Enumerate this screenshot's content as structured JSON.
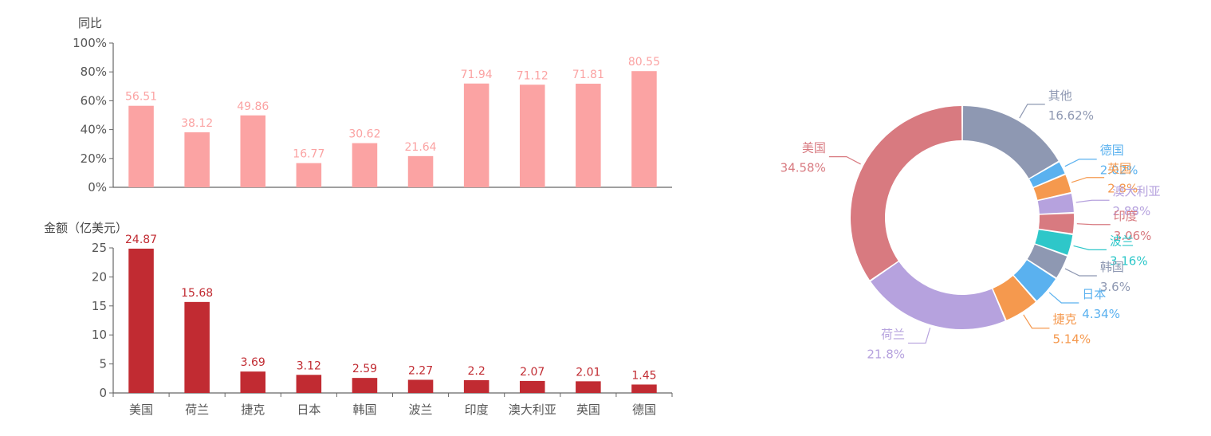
{
  "colors": {
    "yoy_bar": "#fba3a3",
    "amount_bar": "#c12b32",
    "axis": "#666666",
    "text": "#555555"
  },
  "chart_data": [
    {
      "type": "bar",
      "categories": [
        "美国",
        "荷兰",
        "捷克",
        "日本",
        "韩国",
        "波兰",
        "印度",
        "澳大利亚",
        "英国",
        "德国"
      ],
      "values": [
        56.51,
        38.12,
        49.86,
        16.77,
        30.62,
        21.64,
        71.94,
        71.12,
        71.81,
        80.55
      ],
      "ylabel": "同比",
      "ylim": [
        0,
        100
      ],
      "yticks": [
        "0%",
        "20%",
        "40%",
        "60%",
        "80%",
        "100%"
      ],
      "color": "#fba3a3"
    },
    {
      "type": "bar",
      "categories": [
        "美国",
        "荷兰",
        "捷克",
        "日本",
        "韩国",
        "波兰",
        "印度",
        "澳大利亚",
        "英国",
        "德国"
      ],
      "values": [
        24.87,
        15.68,
        3.69,
        3.12,
        2.59,
        2.27,
        2.2,
        2.07,
        2.01,
        1.45
      ],
      "ylabel": "金额（亿美元）",
      "ylim": [
        0,
        25
      ],
      "yticks": [
        "0",
        "5",
        "10",
        "15",
        "20",
        "25"
      ],
      "color": "#c12b32"
    },
    {
      "type": "pie",
      "donut": true,
      "slices": [
        {
          "name": "其他",
          "value": 16.62,
          "label": "16.62%",
          "color": "#8e98b2"
        },
        {
          "name": "德国",
          "value": 2.02,
          "label": "2.02%",
          "color": "#5ab1ef"
        },
        {
          "name": "英国",
          "value": 2.8,
          "label": "2.8%",
          "color": "#f5994e"
        },
        {
          "name": "澳大利亚",
          "value": 2.88,
          "label": "2.88%",
          "color": "#b6a2de"
        },
        {
          "name": "印度",
          "value": 3.06,
          "label": "3.06%",
          "color": "#d87a80"
        },
        {
          "name": "波兰",
          "value": 3.16,
          "label": "3.16%",
          "color": "#2ec7c9"
        },
        {
          "name": "韩国",
          "value": 3.6,
          "label": "3.6%",
          "color": "#8e98b2"
        },
        {
          "name": "日本",
          "value": 4.34,
          "label": "4.34%",
          "color": "#5ab1ef"
        },
        {
          "name": "捷克",
          "value": 5.14,
          "label": "5.14%",
          "color": "#f5994e"
        },
        {
          "name": "荷兰",
          "value": 21.8,
          "label": "21.8%",
          "color": "#b6a2de"
        },
        {
          "name": "美国",
          "value": 34.58,
          "label": "34.58%",
          "color": "#d87a80"
        }
      ]
    }
  ]
}
